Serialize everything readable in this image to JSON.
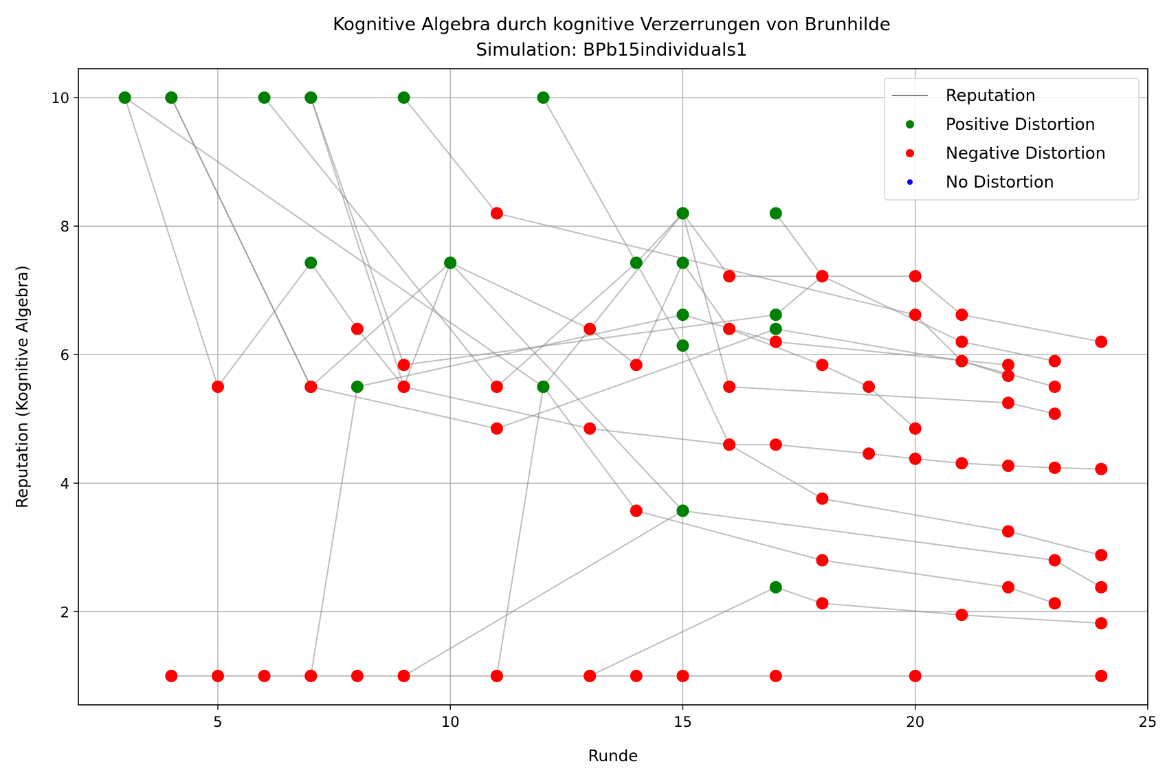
{
  "chart_data": {
    "type": "scatter",
    "title": "Kognitive Algebra durch kognitive Verzerrungen von Brunhilde",
    "subtitle": "Simulation: BPb15individuals1",
    "xlabel": "Runde",
    "ylabel": "Reputation (Kognitive Algebra)",
    "xlim": [
      2,
      25
    ],
    "ylim": [
      0.55,
      10.45
    ],
    "xticks": [
      5,
      10,
      15,
      20,
      25
    ],
    "yticks": [
      2,
      4,
      6,
      8,
      10
    ],
    "grid": true,
    "legend_position": "top-right",
    "legend": [
      {
        "label": "Reputation",
        "kind": "line",
        "color": "#808080"
      },
      {
        "label": "Positive Distortion",
        "kind": "marker",
        "color": "#008000"
      },
      {
        "label": "Negative Distortion",
        "kind": "marker",
        "color": "#ff0000"
      },
      {
        "label": "No Distortion",
        "kind": "marker",
        "color": "#0000ff"
      }
    ],
    "colors": {
      "positive": "#008000",
      "negative": "#ff0000",
      "none": "#0000ff",
      "line": "#808080"
    },
    "series": [
      {
        "points": [
          [
            3,
            10
          ],
          [
            5,
            5.5
          ],
          [
            7,
            7.43
          ],
          [
            8,
            6.4
          ],
          [
            9,
            5.5
          ],
          [
            13,
            4.85
          ],
          [
            16,
            4.6
          ],
          [
            17,
            4.6
          ],
          [
            19,
            4.46
          ],
          [
            20,
            4.38
          ],
          [
            21,
            4.31
          ],
          [
            22,
            4.27
          ],
          [
            23,
            4.24
          ],
          [
            24,
            4.22
          ]
        ],
        "types": [
          "pos",
          "neg",
          "pos",
          "neg",
          "neg",
          "neg",
          "neg",
          "neg",
          "neg",
          "neg",
          "neg",
          "neg",
          "neg",
          "neg"
        ]
      },
      {
        "points": [
          [
            3,
            10
          ],
          [
            12,
            5.5
          ],
          [
            14,
            3.57
          ],
          [
            18,
            2.8
          ],
          [
            22,
            2.38
          ],
          [
            23,
            2.13
          ]
        ],
        "types": [
          "pos",
          "pos",
          "neg",
          "neg",
          "neg",
          "neg"
        ]
      },
      {
        "points": [
          [
            4,
            10
          ],
          [
            7,
            5.5
          ],
          [
            11,
            4.85
          ],
          [
            17,
            6.4
          ],
          [
            21,
            5.9
          ],
          [
            22,
            5.67
          ]
        ],
        "types": [
          "pos",
          "neg",
          "neg",
          "pos",
          "neg",
          "neg"
        ]
      },
      {
        "points": [
          [
            4,
            10
          ],
          [
            7,
            5.5
          ],
          [
            10,
            7.43
          ],
          [
            13,
            6.4
          ],
          [
            14,
            5.84
          ],
          [
            15,
            7.43
          ],
          [
            16,
            6.4
          ],
          [
            18,
            5.84
          ],
          [
            19,
            5.5
          ],
          [
            20,
            4.85
          ]
        ],
        "types": [
          "pos",
          "neg",
          "pos",
          "neg",
          "neg",
          "pos",
          "neg",
          "neg",
          "neg",
          "neg"
        ]
      },
      {
        "points": [
          [
            6,
            10
          ],
          [
            11,
            5.5
          ],
          [
            14,
            7.43
          ],
          [
            15,
            8.2
          ],
          [
            16,
            7.22
          ],
          [
            20,
            7.22
          ],
          [
            21,
            6.62
          ],
          [
            24,
            6.2
          ]
        ],
        "types": [
          "pos",
          "neg",
          "pos",
          "pos",
          "neg",
          "neg",
          "neg",
          "neg"
        ]
      },
      {
        "points": [
          [
            7,
            10
          ],
          [
            9,
            5.5
          ],
          [
            10,
            7.43
          ],
          [
            15,
            3.57
          ],
          [
            23,
            2.8
          ],
          [
            24,
            2.38
          ]
        ],
        "types": [
          "pos",
          "neg",
          "pos",
          "pos",
          "neg",
          "neg"
        ]
      },
      {
        "points": [
          [
            7,
            10
          ],
          [
            9,
            5.84
          ],
          [
            17,
            6.62
          ],
          [
            18,
            7.22
          ],
          [
            21,
            6.2
          ],
          [
            23,
            5.9
          ]
        ],
        "types": [
          "pos",
          "neg",
          "pos",
          "neg",
          "neg",
          "neg"
        ]
      },
      {
        "points": [
          [
            9,
            10
          ],
          [
            11,
            8.2
          ],
          [
            20,
            6.62
          ],
          [
            21,
            5.9
          ],
          [
            23,
            5.5
          ]
        ],
        "types": [
          "pos",
          "neg",
          "neg",
          "neg",
          "neg"
        ]
      },
      {
        "points": [
          [
            12,
            10
          ],
          [
            15,
            6.14
          ],
          [
            16,
            4.6
          ],
          [
            18,
            3.76
          ],
          [
            22,
            3.25
          ],
          [
            24,
            2.88
          ]
        ],
        "types": [
          "pos",
          "pos",
          "neg",
          "neg",
          "neg",
          "neg"
        ]
      },
      {
        "points": [
          [
            7,
            1
          ],
          [
            8,
            5.5
          ],
          [
            15,
            6.62
          ],
          [
            17,
            6.2
          ],
          [
            22,
            5.84
          ]
        ],
        "types": [
          "neg",
          "pos",
          "pos",
          "neg",
          "neg"
        ]
      },
      {
        "points": [
          [
            11,
            1
          ],
          [
            12,
            5.5
          ],
          [
            15,
            8.2
          ],
          [
            16,
            5.5
          ],
          [
            22,
            5.25
          ],
          [
            23,
            5.08
          ]
        ],
        "types": [
          "neg",
          "pos",
          "pos",
          "neg",
          "neg",
          "neg"
        ]
      },
      {
        "points": [
          [
            9,
            1
          ],
          [
            15,
            3.57
          ]
        ],
        "types": [
          "neg",
          "pos"
        ]
      },
      {
        "points": [
          [
            13,
            1
          ],
          [
            17,
            2.38
          ],
          [
            18,
            2.13
          ],
          [
            21,
            1.95
          ],
          [
            24,
            1.82
          ]
        ],
        "types": [
          "neg",
          "pos",
          "neg",
          "neg",
          "neg"
        ]
      },
      {
        "points": [
          [
            4,
            1
          ],
          [
            5,
            1
          ],
          [
            6,
            1
          ],
          [
            7,
            1
          ],
          [
            8,
            1
          ],
          [
            9,
            1
          ],
          [
            11,
            1
          ],
          [
            13,
            1
          ],
          [
            14,
            1
          ],
          [
            15,
            1
          ],
          [
            17,
            1
          ],
          [
            20,
            1
          ],
          [
            24,
            1
          ]
        ],
        "types": [
          "neg",
          "neg",
          "neg",
          "neg",
          "neg",
          "neg",
          "neg",
          "neg",
          "neg",
          "neg",
          "neg",
          "neg",
          "neg"
        ]
      },
      {
        "points": [
          [
            17,
            8.2
          ],
          [
            18,
            7.22
          ]
        ],
        "types": [
          "pos",
          "neg"
        ]
      }
    ]
  }
}
